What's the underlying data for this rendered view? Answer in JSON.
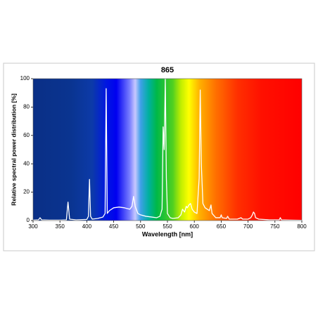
{
  "chart_data": {
    "type": "line",
    "title": "865",
    "xlabel": "Wavelength [nm]",
    "ylabel": "Relative spectral power distribution [%]",
    "color": "#ffffff",
    "x": [
      300,
      310,
      313,
      316,
      330,
      350,
      362,
      365,
      368,
      380,
      400,
      403,
      405,
      407,
      410,
      420,
      430,
      434,
      436,
      438,
      442,
      450,
      460,
      470,
      480,
      484,
      487,
      490,
      495,
      500,
      510,
      520,
      530,
      536,
      540,
      542,
      544,
      546,
      548,
      550,
      555,
      560,
      570,
      575,
      578,
      582,
      585,
      587,
      590,
      593,
      596,
      600,
      605,
      609,
      611,
      613,
      616,
      620,
      624,
      628,
      631,
      633,
      640,
      648,
      650,
      652,
      660,
      662,
      665,
      680,
      687,
      690,
      700,
      705,
      708,
      710,
      712,
      714,
      720,
      740,
      758,
      760,
      762,
      780,
      800
    ],
    "values": [
      0.3,
      0.5,
      2,
      0.5,
      0.3,
      0.3,
      0.5,
      13,
      1,
      0.5,
      0.8,
      3,
      29,
      3,
      1,
      1.5,
      2.5,
      5,
      93,
      5,
      7,
      9,
      9.5,
      9,
      8,
      10,
      17,
      10,
      5,
      4,
      3,
      2.5,
      2,
      3,
      8,
      66,
      50,
      100,
      30,
      5,
      2,
      1.5,
      2,
      4,
      8,
      6,
      10,
      9,
      11,
      12,
      8,
      6,
      5,
      30,
      92,
      40,
      12,
      9,
      8,
      7,
      11,
      5,
      2,
      2,
      4,
      2,
      1.5,
      3,
      1,
      1,
      2,
      1,
      1,
      2,
      4,
      6,
      5,
      2,
      1,
      0.5,
      0.5,
      2,
      0.5,
      0.3,
      0.2
    ],
    "xlim": [
      300,
      800
    ],
    "xticks": [
      300,
      350,
      400,
      450,
      500,
      550,
      600,
      650,
      700,
      750,
      800
    ],
    "ylim": [
      0,
      100
    ],
    "yticks": [
      0,
      20,
      40,
      60,
      80,
      100
    ]
  }
}
